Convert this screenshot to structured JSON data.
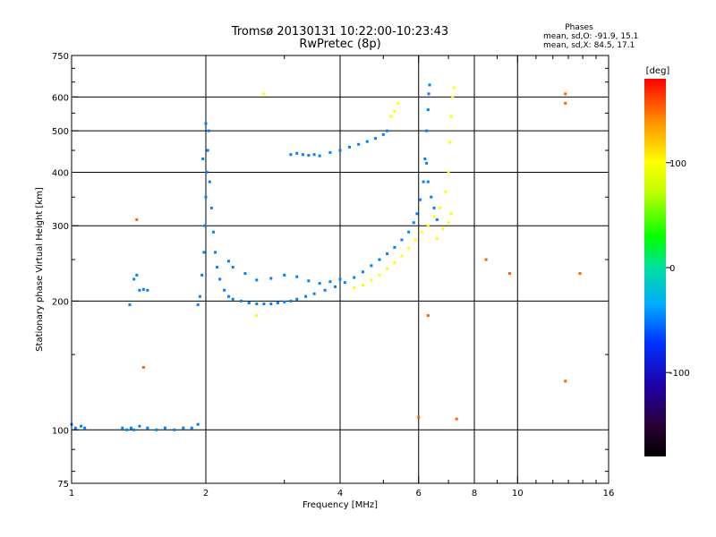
{
  "chart_data": {
    "type": "scatter",
    "title": "Tromsø 20130131 10:22:00-10:23:43",
    "subtitle": "RwPretec (8p)",
    "phase_box": {
      "title": "Phases",
      "line1": "mean, sd,O: -91.9, 15.1",
      "line2": "mean, sd,X:  84.5, 17.1"
    },
    "xlabel": "Frequency [MHz]",
    "ylabel": "Stationary phase Virtual Height [km]",
    "x_scale": "log",
    "y_scale": "log",
    "xlim": [
      1,
      16
    ],
    "ylim": [
      75,
      750
    ],
    "x_ticks": [
      {
        "value": 1,
        "label": "1"
      },
      {
        "value": 2,
        "label": "2"
      },
      {
        "value": 4,
        "label": "4"
      },
      {
        "value": 6,
        "label": "6"
      },
      {
        "value": 8,
        "label": "8"
      },
      {
        "value": 10,
        "label": "10"
      },
      {
        "value": 16,
        "label": "16"
      }
    ],
    "y_ticks": [
      {
        "value": 75,
        "label": "75"
      },
      {
        "value": 100,
        "label": "100"
      },
      {
        "value": 200,
        "label": "200"
      },
      {
        "value": 300,
        "label": "300"
      },
      {
        "value": 400,
        "label": "400"
      },
      {
        "value": 500,
        "label": "500"
      },
      {
        "value": 600,
        "label": "600"
      },
      {
        "value": 750,
        "label": "750"
      }
    ],
    "x_gridlines": [
      2,
      4,
      6,
      8,
      10
    ],
    "y_gridlines": [
      100,
      200,
      300,
      400,
      500,
      600
    ],
    "colorbar": {
      "label": "[deg]",
      "range": [
        -180,
        180
      ],
      "ticks": [
        {
          "value": 100,
          "label": "100"
        },
        {
          "value": 0,
          "label": "0"
        },
        {
          "value": -100,
          "label": "-100"
        }
      ]
    },
    "series": [
      {
        "mode": "O",
        "phase_deg": -100,
        "points": [
          [
            1.0,
            103
          ],
          [
            1.02,
            101
          ],
          [
            1.05,
            102
          ],
          [
            1.07,
            101
          ],
          [
            1.3,
            101
          ],
          [
            1.33,
            100
          ],
          [
            1.36,
            101
          ],
          [
            1.38,
            100
          ],
          [
            1.42,
            102
          ],
          [
            1.48,
            101
          ],
          [
            1.55,
            100
          ],
          [
            1.62,
            101
          ],
          [
            1.7,
            100
          ],
          [
            1.78,
            101
          ],
          [
            1.86,
            101
          ],
          [
            1.92,
            103
          ],
          [
            1.35,
            196
          ],
          [
            1.38,
            225
          ],
          [
            1.4,
            230
          ],
          [
            1.42,
            212
          ],
          [
            1.45,
            213
          ],
          [
            1.48,
            212
          ],
          [
            1.92,
            196
          ],
          [
            1.94,
            205
          ],
          [
            1.96,
            230
          ],
          [
            1.98,
            260
          ],
          [
            1.99,
            300
          ],
          [
            2.0,
            350
          ],
          [
            2.01,
            400
          ],
          [
            2.02,
            450
          ],
          [
            2.03,
            500
          ],
          [
            2.0,
            520
          ],
          [
            1.97,
            430
          ],
          [
            2.04,
            380
          ],
          [
            2.06,
            330
          ],
          [
            2.08,
            290
          ],
          [
            2.1,
            260
          ],
          [
            2.12,
            240
          ],
          [
            2.15,
            225
          ],
          [
            2.2,
            212
          ],
          [
            2.25,
            205
          ],
          [
            2.3,
            202
          ],
          [
            2.4,
            200
          ],
          [
            2.5,
            198
          ],
          [
            2.6,
            197
          ],
          [
            2.7,
            197
          ],
          [
            2.8,
            197
          ],
          [
            2.9,
            198
          ],
          [
            3.0,
            199
          ],
          [
            3.1,
            200
          ],
          [
            3.2,
            202
          ],
          [
            3.35,
            205
          ],
          [
            3.5,
            208
          ],
          [
            3.7,
            212
          ],
          [
            3.9,
            216
          ],
          [
            4.1,
            221
          ],
          [
            4.3,
            227
          ],
          [
            4.5,
            234
          ],
          [
            4.7,
            242
          ],
          [
            4.9,
            250
          ],
          [
            5.1,
            258
          ],
          [
            5.3,
            267
          ],
          [
            5.5,
            278
          ],
          [
            5.7,
            290
          ],
          [
            5.85,
            305
          ],
          [
            5.95,
            320
          ],
          [
            6.05,
            345
          ],
          [
            6.15,
            380
          ],
          [
            6.2,
            430
          ],
          [
            6.25,
            500
          ],
          [
            6.3,
            560
          ],
          [
            6.32,
            610
          ],
          [
            6.35,
            640
          ],
          [
            2.25,
            248
          ],
          [
            2.3,
            240
          ],
          [
            2.45,
            232
          ],
          [
            2.6,
            224
          ],
          [
            2.8,
            226
          ],
          [
            3.0,
            230
          ],
          [
            3.2,
            228
          ],
          [
            3.4,
            223
          ],
          [
            3.6,
            220
          ],
          [
            3.8,
            222
          ],
          [
            4.0,
            225
          ],
          [
            3.1,
            440
          ],
          [
            3.2,
            443
          ],
          [
            3.3,
            440
          ],
          [
            3.4,
            438
          ],
          [
            3.5,
            440
          ],
          [
            3.6,
            437
          ],
          [
            3.8,
            445
          ],
          [
            4.0,
            450
          ],
          [
            4.2,
            458
          ],
          [
            4.4,
            465
          ],
          [
            4.6,
            472
          ],
          [
            4.8,
            480
          ],
          [
            5.0,
            490
          ],
          [
            5.1,
            500
          ],
          [
            6.25,
            420
          ],
          [
            6.3,
            380
          ],
          [
            6.4,
            350
          ],
          [
            6.5,
            330
          ],
          [
            6.6,
            310
          ]
        ]
      },
      {
        "mode": "X",
        "phase_deg": 100,
        "points": [
          [
            4.3,
            215
          ],
          [
            4.5,
            218
          ],
          [
            4.7,
            224
          ],
          [
            4.9,
            230
          ],
          [
            5.1,
            238
          ],
          [
            5.3,
            246
          ],
          [
            5.5,
            255
          ],
          [
            5.7,
            266
          ],
          [
            5.9,
            278
          ],
          [
            6.1,
            290
          ],
          [
            6.3,
            300
          ],
          [
            6.5,
            315
          ],
          [
            6.7,
            330
          ],
          [
            6.9,
            360
          ],
          [
            7.0,
            400
          ],
          [
            7.05,
            470
          ],
          [
            7.1,
            540
          ],
          [
            7.15,
            600
          ],
          [
            7.2,
            630
          ],
          [
            6.6,
            280
          ],
          [
            6.8,
            295
          ],
          [
            7.0,
            305
          ],
          [
            7.1,
            320
          ],
          [
            5.2,
            540
          ],
          [
            5.3,
            555
          ],
          [
            5.4,
            580
          ],
          [
            2.7,
            610
          ],
          [
            2.6,
            185
          ]
        ]
      },
      {
        "mode": "outliers",
        "phase_deg": 150,
        "points": [
          [
            1.45,
            140
          ],
          [
            1.4,
            310
          ],
          [
            12.8,
            580
          ],
          [
            12.8,
            610
          ],
          [
            13.8,
            232
          ],
          [
            7.3,
            106
          ],
          [
            6.0,
            107
          ],
          [
            6.3,
            185
          ],
          [
            9.6,
            232
          ],
          [
            8.5,
            250
          ],
          [
            12.8,
            130
          ]
        ]
      }
    ]
  }
}
